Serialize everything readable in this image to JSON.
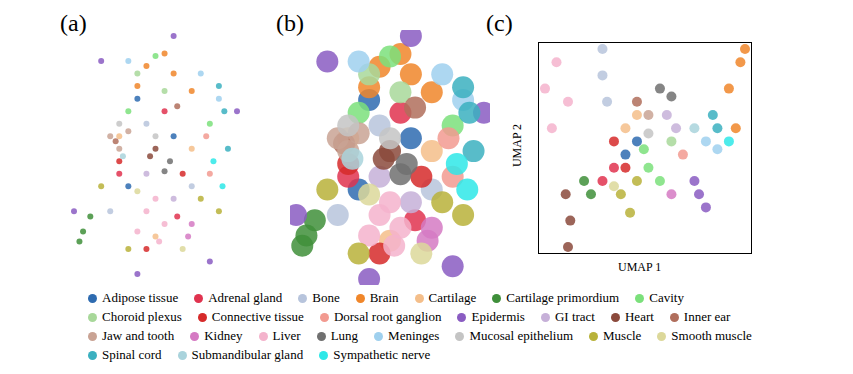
{
  "chart_data": [
    {
      "type": "scatter",
      "title": "(a)",
      "tick_labels": false,
      "series": [
        {
          "name": "Adipose tissue",
          "color": "#2e6bb0",
          "x": [
            35,
            60,
            40
          ],
          "values": [
            40,
            60,
            75
          ]
        },
        {
          "name": "Adrenal gland",
          "color": "#e0334f",
          "x": [
            62,
            30,
            55
          ],
          "values": [
            28,
            45,
            70
          ]
        },
        {
          "name": "Bone",
          "color": "#b7c4dc",
          "x": [
            45,
            70,
            25
          ],
          "values": [
            65,
            40,
            30
          ]
        },
        {
          "name": "Brain",
          "color": "#f0862a",
          "x": [
            45,
            60,
            70,
            40,
            55
          ],
          "values": [
            88,
            85,
            78,
            80,
            93
          ]
        },
        {
          "name": "Cartilage",
          "color": "#f4be8a",
          "x": [
            30,
            70,
            50
          ],
          "values": [
            60,
            55,
            20
          ]
        },
        {
          "name": "Cartilage primordium",
          "color": "#3f8f3a",
          "x": [
            10,
            14,
            8
          ],
          "values": [
            22,
            28,
            18
          ]
        },
        {
          "name": "Cavity",
          "color": "#7be07b",
          "x": [
            50,
            35,
            80
          ],
          "values": [
            92,
            70,
            65
          ]
        },
        {
          "name": "Choroid plexus",
          "color": "#a8d89a",
          "x": [
            40,
            55
          ],
          "values": [
            85,
            78
          ]
        },
        {
          "name": "Connective tissue",
          "color": "#d62a2a",
          "x": [
            30,
            65,
            45
          ],
          "values": [
            50,
            45,
            15
          ]
        },
        {
          "name": "Dorsal root ganglion",
          "color": "#f29a90",
          "x": [
            80,
            78
          ],
          "values": [
            45,
            60
          ]
        },
        {
          "name": "Epidermis",
          "color": "#8a5cc2",
          "x": [
            5,
            20,
            60,
            95,
            80,
            40
          ],
          "values": [
            30,
            90,
            100,
            70,
            10,
            5
          ]
        },
        {
          "name": "GI tract",
          "color": "#c6b0d8",
          "x": [
            45,
            60
          ],
          "values": [
            45,
            35
          ]
        },
        {
          "name": "Heart",
          "color": "#8b4a3c",
          "x": [
            50,
            47
          ],
          "values": [
            55,
            52
          ]
        },
        {
          "name": "Inner ear",
          "color": "#b06e5c",
          "x": [
            62,
            28
          ],
          "values": [
            72,
            58
          ]
        },
        {
          "name": "Jaw and tooth",
          "color": "#c9a394",
          "x": [
            25,
            30,
            35
          ],
          "values": [
            60,
            55,
            62
          ]
        },
        {
          "name": "Kidney",
          "color": "#d57ac3",
          "x": [
            68,
            70
          ],
          "values": [
            20,
            25
          ]
        },
        {
          "name": "Liver",
          "color": "#f4b3cc",
          "x": [
            45,
            50,
            55,
            40,
            52
          ],
          "values": [
            30,
            35,
            25,
            22,
            18
          ]
        },
        {
          "name": "Lung",
          "color": "#707070",
          "x": [
            58,
            55
          ],
          "values": [
            50,
            46
          ]
        },
        {
          "name": "Meninges",
          "color": "#9fd0ee",
          "x": [
            75,
            35,
            85
          ],
          "values": [
            85,
            90,
            75
          ]
        },
        {
          "name": "Mucosal epithelium",
          "color": "#c4c4c4",
          "x": [
            30,
            50
          ],
          "values": [
            65,
            60
          ]
        },
        {
          "name": "Muscle",
          "color": "#b8b23a",
          "x": [
            20,
            75,
            35,
            85
          ],
          "values": [
            40,
            35,
            15,
            30
          ]
        },
        {
          "name": "Smooth muscle",
          "color": "#dcd89a",
          "x": [
            40,
            65
          ],
          "values": [
            38,
            15
          ]
        },
        {
          "name": "Spinal cord",
          "color": "#3bb0c0",
          "x": [
            90,
            88,
            85
          ],
          "values": [
            55,
            70,
            80
          ]
        },
        {
          "name": "Submandibular gland",
          "color": "#a9d3dc",
          "x": [
            32
          ],
          "values": [
            52
          ]
        },
        {
          "name": "Sympathetic nerve",
          "color": "#2ee8e8",
          "x": [
            82,
            87
          ],
          "values": [
            50,
            40
          ]
        }
      ]
    },
    {
      "type": "scatter",
      "title": "(b)",
      "tick_labels": false,
      "series": [
        {
          "name": "Adipose tissue",
          "color": "#2e6bb0",
          "x": [
            35,
            60,
            40
          ],
          "values": [
            40,
            60,
            75
          ]
        },
        {
          "name": "Adrenal gland",
          "color": "#e0334f",
          "x": [
            62,
            30,
            55
          ],
          "values": [
            28,
            45,
            70
          ]
        },
        {
          "name": "Bone",
          "color": "#b7c4dc",
          "x": [
            45,
            70,
            25
          ],
          "values": [
            65,
            40,
            30
          ]
        },
        {
          "name": "Brain",
          "color": "#f0862a",
          "x": [
            45,
            60,
            70,
            40,
            55
          ],
          "values": [
            88,
            85,
            78,
            80,
            93
          ]
        },
        {
          "name": "Cartilage",
          "color": "#f4be8a",
          "x": [
            30,
            70,
            50
          ],
          "values": [
            60,
            55,
            20
          ]
        },
        {
          "name": "Cartilage primordium",
          "color": "#3f8f3a",
          "x": [
            10,
            14,
            8
          ],
          "values": [
            22,
            28,
            18
          ]
        },
        {
          "name": "Cavity",
          "color": "#7be07b",
          "x": [
            50,
            35,
            80
          ],
          "values": [
            92,
            70,
            65
          ]
        },
        {
          "name": "Choroid plexus",
          "color": "#a8d89a",
          "x": [
            40,
            55
          ],
          "values": [
            85,
            78
          ]
        },
        {
          "name": "Connective tissue",
          "color": "#d62a2a",
          "x": [
            30,
            65,
            45
          ],
          "values": [
            50,
            45,
            15
          ]
        },
        {
          "name": "Dorsal root ganglion",
          "color": "#f29a90",
          "x": [
            80,
            78
          ],
          "values": [
            45,
            60
          ]
        },
        {
          "name": "Epidermis",
          "color": "#8a5cc2",
          "x": [
            5,
            20,
            60,
            95,
            80,
            40
          ],
          "values": [
            30,
            90,
            100,
            70,
            10,
            5
          ]
        },
        {
          "name": "GI tract",
          "color": "#c6b0d8",
          "x": [
            45,
            60
          ],
          "values": [
            45,
            35
          ]
        },
        {
          "name": "Heart",
          "color": "#8b4a3c",
          "x": [
            50,
            47
          ],
          "values": [
            55,
            52
          ]
        },
        {
          "name": "Inner ear",
          "color": "#b06e5c",
          "x": [
            62,
            28
          ],
          "values": [
            72,
            58
          ]
        },
        {
          "name": "Jaw and tooth",
          "color": "#c9a394",
          "x": [
            25,
            30,
            35
          ],
          "values": [
            60,
            55,
            62
          ]
        },
        {
          "name": "Kidney",
          "color": "#d57ac3",
          "x": [
            68,
            70
          ],
          "values": [
            20,
            25
          ]
        },
        {
          "name": "Liver",
          "color": "#f4b3cc",
          "x": [
            45,
            50,
            55,
            40,
            52
          ],
          "values": [
            30,
            35,
            25,
            22,
            18
          ]
        },
        {
          "name": "Lung",
          "color": "#707070",
          "x": [
            58,
            55
          ],
          "values": [
            50,
            46
          ]
        },
        {
          "name": "Meninges",
          "color": "#9fd0ee",
          "x": [
            75,
            35,
            85
          ],
          "values": [
            85,
            90,
            75
          ]
        },
        {
          "name": "Mucosal epithelium",
          "color": "#c4c4c4",
          "x": [
            30,
            50
          ],
          "values": [
            65,
            60
          ]
        },
        {
          "name": "Muscle",
          "color": "#b8b23a",
          "x": [
            20,
            75,
            35,
            85
          ],
          "values": [
            40,
            35,
            15,
            30
          ]
        },
        {
          "name": "Smooth muscle",
          "color": "#dcd89a",
          "x": [
            40,
            65
          ],
          "values": [
            38,
            15
          ]
        },
        {
          "name": "Spinal cord",
          "color": "#3bb0c0",
          "x": [
            90,
            88,
            85
          ],
          "values": [
            55,
            70,
            80
          ]
        },
        {
          "name": "Submandibular gland",
          "color": "#a9d3dc",
          "x": [
            32
          ],
          "values": [
            52
          ]
        },
        {
          "name": "Sympathetic nerve",
          "color": "#2ee8e8",
          "x": [
            82,
            87
          ],
          "values": [
            50,
            40
          ]
        }
      ]
    },
    {
      "type": "scatter",
      "title": "(c)",
      "xlabel": "UMAP 1",
      "ylabel": "UMAP 2",
      "tick_labels": false,
      "series": [
        {
          "name": "Adipose tissue",
          "color": "#2e6bb0",
          "x": [
            40,
            45
          ],
          "values": [
            50,
            55
          ]
        },
        {
          "name": "Adrenal gland",
          "color": "#e0334f",
          "x": [
            30,
            35
          ],
          "values": [
            40,
            45
          ]
        },
        {
          "name": "Bone",
          "color": "#b7c4dc",
          "x": [
            30,
            30,
            32
          ],
          "values": [
            80,
            90,
            70
          ]
        },
        {
          "name": "Brain",
          "color": "#f0862a",
          "x": [
            85,
            90,
            88,
            92
          ],
          "values": [
            75,
            85,
            60,
            90
          ]
        },
        {
          "name": "Cartilage",
          "color": "#f4be8a",
          "x": [
            40,
            45
          ],
          "values": [
            60,
            65
          ]
        },
        {
          "name": "Cartilage primordium",
          "color": "#3f8f3a",
          "x": [
            22,
            25
          ],
          "values": [
            40,
            35
          ]
        },
        {
          "name": "Cavity",
          "color": "#7be07b",
          "x": [
            50,
            55,
            48
          ],
          "values": [
            45,
            40,
            52
          ]
        },
        {
          "name": "Choroid plexus",
          "color": "#a8d89a",
          "x": [
            60
          ],
          "values": [
            55
          ]
        },
        {
          "name": "Connective tissue",
          "color": "#d62a2a",
          "x": [
            35,
            40
          ],
          "values": [
            55,
            45
          ]
        },
        {
          "name": "Dorsal root ganglion",
          "color": "#f29a90",
          "x": [
            65
          ],
          "values": [
            50
          ]
        },
        {
          "name": "Epidermis",
          "color": "#8a5cc2",
          "x": [
            72,
            75,
            70
          ],
          "values": [
            35,
            30,
            40
          ]
        },
        {
          "name": "GI tract",
          "color": "#c6b0d8",
          "x": [
            58,
            62
          ],
          "values": [
            65,
            60
          ]
        },
        {
          "name": "Heart",
          "color": "#8b4a3c",
          "x": [
            15,
            16,
            14
          ],
          "values": [
            15,
            25,
            35
          ]
        },
        {
          "name": "Inner ear",
          "color": "#b06e5c",
          "x": [
            45
          ],
          "values": [
            70
          ]
        },
        {
          "name": "Jaw and tooth",
          "color": "#c9a394",
          "x": [
            50
          ],
          "values": [
            65
          ]
        },
        {
          "name": "Kidney",
          "color": "#d57ac3",
          "x": [
            60
          ],
          "values": [
            35
          ]
        },
        {
          "name": "Liver",
          "color": "#f4b3cc",
          "x": [
            5,
            10,
            15,
            8
          ],
          "values": [
            75,
            85,
            70,
            60
          ]
        },
        {
          "name": "Lung",
          "color": "#707070",
          "x": [
            55,
            60
          ],
          "values": [
            75,
            72
          ]
        },
        {
          "name": "Meninges",
          "color": "#9fd0ee",
          "x": [
            75,
            80
          ],
          "values": [
            55,
            52
          ]
        },
        {
          "name": "Mucosal epithelium",
          "color": "#c4c4c4",
          "x": [
            50
          ],
          "values": [
            58
          ]
        },
        {
          "name": "Muscle",
          "color": "#b8b23a",
          "x": [
            38,
            42,
            45
          ],
          "values": [
            35,
            28,
            40
          ]
        },
        {
          "name": "Smooth muscle",
          "color": "#dcd89a",
          "x": [
            35
          ],
          "values": [
            38
          ]
        },
        {
          "name": "Spinal cord",
          "color": "#3bb0c0",
          "x": [
            80,
            78
          ],
          "values": [
            60,
            65
          ]
        },
        {
          "name": "Submandibular gland",
          "color": "#a9d3dc",
          "x": [
            70
          ],
          "values": [
            60
          ]
        },
        {
          "name": "Sympathetic nerve",
          "color": "#2ee8e8",
          "x": [
            85
          ],
          "values": [
            55
          ]
        }
      ]
    }
  ]
}
